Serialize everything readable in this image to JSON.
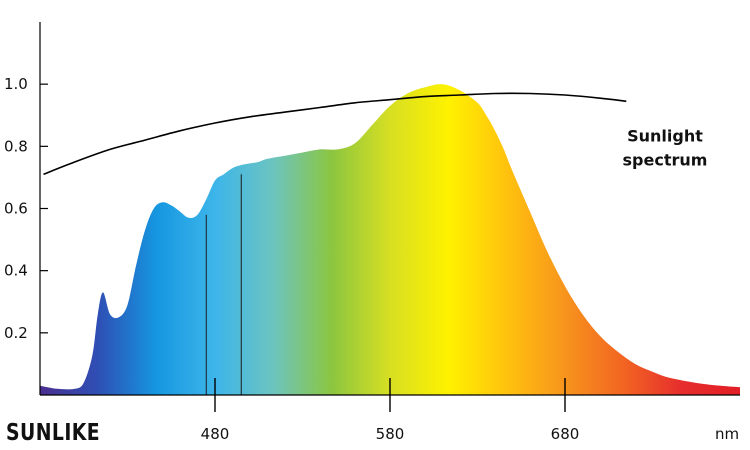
{
  "brand": {
    "logo_text": "SUNLIKE"
  },
  "chart_data": {
    "type": "area",
    "xlabel": "nm",
    "ylabel": "",
    "xlim": [
      380,
      780
    ],
    "ylim": [
      0,
      1.2
    ],
    "x_ticks": [
      480,
      580,
      680
    ],
    "x_tick_labels": [
      "480",
      "580",
      "680"
    ],
    "y_ticks": [
      0.2,
      0.4,
      0.6,
      0.8,
      1.0
    ],
    "y_tick_labels": [
      "0.2",
      "0.4",
      "0.6",
      "0.8",
      "1.0"
    ],
    "grid": false,
    "series": [
      {
        "type": "area",
        "x": [
          380,
          390,
          400,
          405,
          410,
          413,
          416,
          420,
          425,
          430,
          435,
          440,
          445,
          450,
          455,
          460,
          465,
          470,
          475,
          480,
          485,
          490,
          495,
          500,
          505,
          510,
          520,
          530,
          540,
          550,
          560,
          570,
          580,
          590,
          600,
          610,
          620,
          630,
          635,
          640,
          645,
          650,
          660,
          670,
          680,
          690,
          700,
          710,
          720,
          730,
          740,
          760,
          780
        ],
        "values": [
          0.03,
          0.02,
          0.02,
          0.04,
          0.13,
          0.26,
          0.33,
          0.26,
          0.25,
          0.29,
          0.42,
          0.53,
          0.6,
          0.62,
          0.61,
          0.59,
          0.57,
          0.58,
          0.63,
          0.69,
          0.71,
          0.73,
          0.74,
          0.745,
          0.75,
          0.76,
          0.77,
          0.78,
          0.79,
          0.79,
          0.81,
          0.87,
          0.93,
          0.97,
          0.99,
          1.0,
          0.98,
          0.94,
          0.9,
          0.85,
          0.79,
          0.72,
          0.59,
          0.46,
          0.35,
          0.26,
          0.19,
          0.14,
          0.1,
          0.075,
          0.055,
          0.035,
          0.025
        ],
        "colors": [
          "#4b2f8f",
          "#2f4fb5",
          "#1597e0",
          "#3db5ea",
          "#6cc4c0",
          "#8cc63f",
          "#d7df23",
          "#fff200",
          "#ffc20e",
          "#f7941d",
          "#f26522",
          "#e62d2d",
          "#e21e26"
        ]
      },
      {
        "type": "line",
        "name": "Sunlight spectrum",
        "x": [
          382,
          400,
          420,
          440,
          460,
          480,
          500,
          520,
          540,
          560,
          580,
          600,
          620,
          640,
          660,
          680,
          700,
          715
        ],
        "values": [
          0.71,
          0.75,
          0.79,
          0.82,
          0.85,
          0.875,
          0.895,
          0.91,
          0.925,
          0.94,
          0.95,
          0.96,
          0.965,
          0.97,
          0.97,
          0.965,
          0.955,
          0.945
        ],
        "color": "#000000"
      }
    ],
    "markers": [
      {
        "x": 475,
        "value": 0.58
      },
      {
        "x": 495,
        "value": 0.71
      }
    ],
    "annotations": [
      {
        "text": "Sunlight spectrum",
        "lines": [
          "Sunlight",
          "spectrum"
        ],
        "x": 755,
        "value": 0.8
      }
    ]
  }
}
